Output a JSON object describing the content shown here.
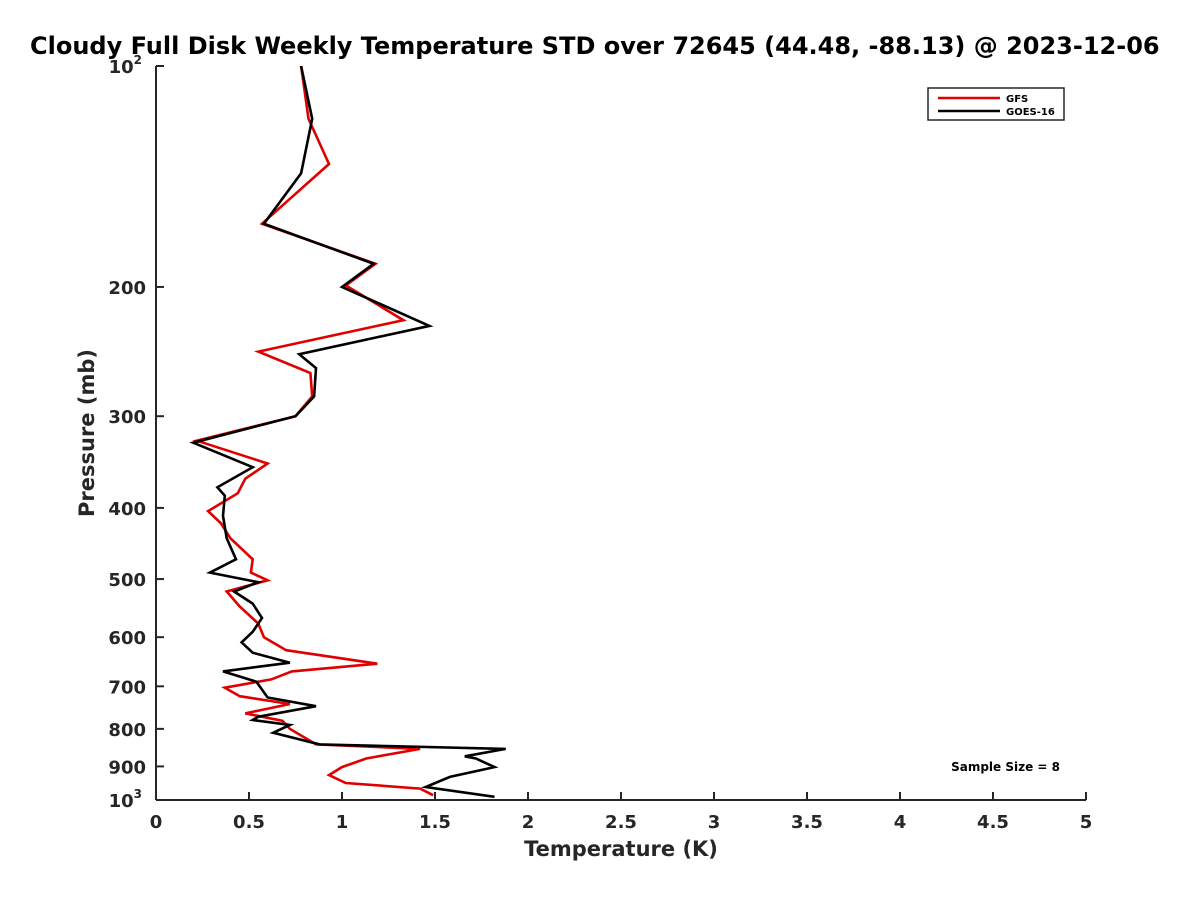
{
  "chart_data": {
    "type": "line",
    "title": "Cloudy Full Disk Weekly Temperature STD over 72645 (44.48, -88.13) @ 2023-12-06",
    "xlabel": "Temperature (K)",
    "ylabel": "Pressure (mb)",
    "xlim": [
      0,
      5
    ],
    "ylim": [
      100,
      1000
    ],
    "y_scale": "log",
    "y_reversed": true,
    "grid": false,
    "legend_position": "top-right",
    "x_ticks": [
      {
        "value": 0,
        "label": "0"
      },
      {
        "value": 0.5,
        "label": "0.5"
      },
      {
        "value": 1,
        "label": "1"
      },
      {
        "value": 1.5,
        "label": "1.5"
      },
      {
        "value": 2,
        "label": "2"
      },
      {
        "value": 2.5,
        "label": "2.5"
      },
      {
        "value": 3,
        "label": "3"
      },
      {
        "value": 3.5,
        "label": "3.5"
      },
      {
        "value": 4,
        "label": "4"
      },
      {
        "value": 4.5,
        "label": "4.5"
      },
      {
        "value": 5,
        "label": "5"
      }
    ],
    "y_ticks": [
      {
        "value": 100,
        "base": "10",
        "exp": "2"
      },
      {
        "value": 200,
        "base": "200",
        "exp": ""
      },
      {
        "value": 300,
        "base": "300",
        "exp": ""
      },
      {
        "value": 400,
        "base": "400",
        "exp": ""
      },
      {
        "value": 500,
        "base": "500",
        "exp": ""
      },
      {
        "value": 600,
        "base": "600",
        "exp": ""
      },
      {
        "value": 700,
        "base": "700",
        "exp": ""
      },
      {
        "value": 800,
        "base": "800",
        "exp": ""
      },
      {
        "value": 900,
        "base": "900",
        "exp": ""
      },
      {
        "value": 1000,
        "base": "10",
        "exp": "3"
      }
    ],
    "annotation": "Sample Size = 8",
    "series": [
      {
        "name": "GFS",
        "color": "#e00000",
        "points": [
          [
            0.78,
            100
          ],
          [
            0.82,
            118
          ],
          [
            0.93,
            136
          ],
          [
            0.57,
            164
          ],
          [
            1.18,
            186
          ],
          [
            1.02,
            199
          ],
          [
            1.33,
            222
          ],
          [
            0.55,
            245
          ],
          [
            0.83,
            262
          ],
          [
            0.84,
            282
          ],
          [
            0.75,
            300
          ],
          [
            0.22,
            324
          ],
          [
            0.6,
            348
          ],
          [
            0.48,
            365
          ],
          [
            0.44,
            382
          ],
          [
            0.28,
            404
          ],
          [
            0.35,
            420
          ],
          [
            0.4,
            440
          ],
          [
            0.52,
            470
          ],
          [
            0.51,
            490
          ],
          [
            0.6,
            502
          ],
          [
            0.38,
            520
          ],
          [
            0.45,
            545
          ],
          [
            0.55,
            575
          ],
          [
            0.58,
            600
          ],
          [
            0.7,
            625
          ],
          [
            1.19,
            652
          ],
          [
            0.73,
            668
          ],
          [
            0.62,
            685
          ],
          [
            0.37,
            703
          ],
          [
            0.45,
            722
          ],
          [
            0.72,
            740
          ],
          [
            0.48,
            762
          ],
          [
            0.68,
            780
          ],
          [
            0.72,
            800
          ],
          [
            0.86,
            840
          ],
          [
            1.42,
            852
          ],
          [
            1.13,
            878
          ],
          [
            1.0,
            902
          ],
          [
            0.93,
            925
          ],
          [
            1.02,
            948
          ],
          [
            1.42,
            965
          ],
          [
            1.49,
            985
          ]
        ]
      },
      {
        "name": "GOES-16",
        "color": "#000000",
        "points": [
          [
            0.78,
            100
          ],
          [
            0.84,
            118
          ],
          [
            0.78,
            140
          ],
          [
            0.58,
            164
          ],
          [
            1.17,
            186
          ],
          [
            1.0,
            200
          ],
          [
            1.47,
            226
          ],
          [
            0.77,
            247
          ],
          [
            0.86,
            258
          ],
          [
            0.85,
            282
          ],
          [
            0.75,
            300
          ],
          [
            0.2,
            326
          ],
          [
            0.52,
            352
          ],
          [
            0.33,
            375
          ],
          [
            0.37,
            385
          ],
          [
            0.36,
            410
          ],
          [
            0.38,
            440
          ],
          [
            0.43,
            470
          ],
          [
            0.29,
            490
          ],
          [
            0.55,
            505
          ],
          [
            0.42,
            520
          ],
          [
            0.52,
            540
          ],
          [
            0.57,
            565
          ],
          [
            0.52,
            590
          ],
          [
            0.46,
            610
          ],
          [
            0.52,
            630
          ],
          [
            0.72,
            650
          ],
          [
            0.36,
            668
          ],
          [
            0.54,
            690
          ],
          [
            0.6,
            725
          ],
          [
            0.86,
            745
          ],
          [
            0.55,
            770
          ],
          [
            0.52,
            778
          ],
          [
            0.72,
            790
          ],
          [
            0.63,
            810
          ],
          [
            0.88,
            840
          ],
          [
            1.88,
            852
          ],
          [
            1.66,
            872
          ],
          [
            1.72,
            878
          ],
          [
            1.82,
            902
          ],
          [
            1.58,
            930
          ],
          [
            1.45,
            960
          ],
          [
            1.82,
            990
          ]
        ]
      }
    ]
  }
}
